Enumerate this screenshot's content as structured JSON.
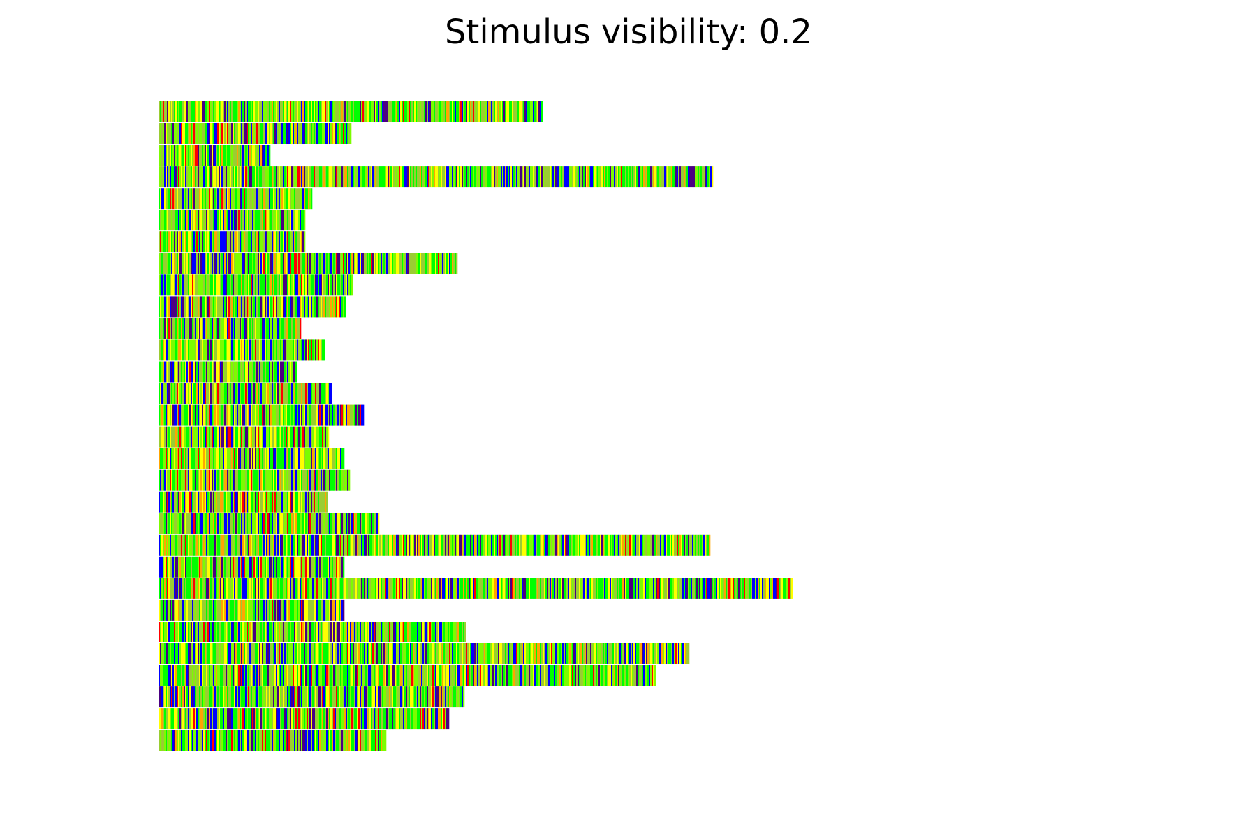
{
  "chart_data": {
    "type": "heatmap",
    "title": "Stimulus visibility: 0.2",
    "xlabel": "",
    "ylabel": "",
    "axes_visible": false,
    "grid": false,
    "legend": "none",
    "colormap": [
      "#0000ff",
      "#4b0082",
      "#00ff00",
      "#7cfc00",
      "#9acd32",
      "#ffff00",
      "#ffa500",
      "#ff0000"
    ],
    "rows": [
      {
        "length": 550
      },
      {
        "length": 276
      },
      {
        "length": 160
      },
      {
        "length": 793
      },
      {
        "length": 220
      },
      {
        "length": 209
      },
      {
        "length": 210
      },
      {
        "length": 427
      },
      {
        "length": 277
      },
      {
        "length": 268
      },
      {
        "length": 203
      },
      {
        "length": 237
      },
      {
        "length": 197
      },
      {
        "length": 248
      },
      {
        "length": 293
      },
      {
        "length": 243
      },
      {
        "length": 266
      },
      {
        "length": 273
      },
      {
        "length": 242
      },
      {
        "length": 315
      },
      {
        "length": 790
      },
      {
        "length": 265
      },
      {
        "length": 908
      },
      {
        "length": 265
      },
      {
        "length": 440
      },
      {
        "length": 760
      },
      {
        "length": 712
      },
      {
        "length": 438
      },
      {
        "length": 416
      },
      {
        "length": 326
      }
    ]
  }
}
